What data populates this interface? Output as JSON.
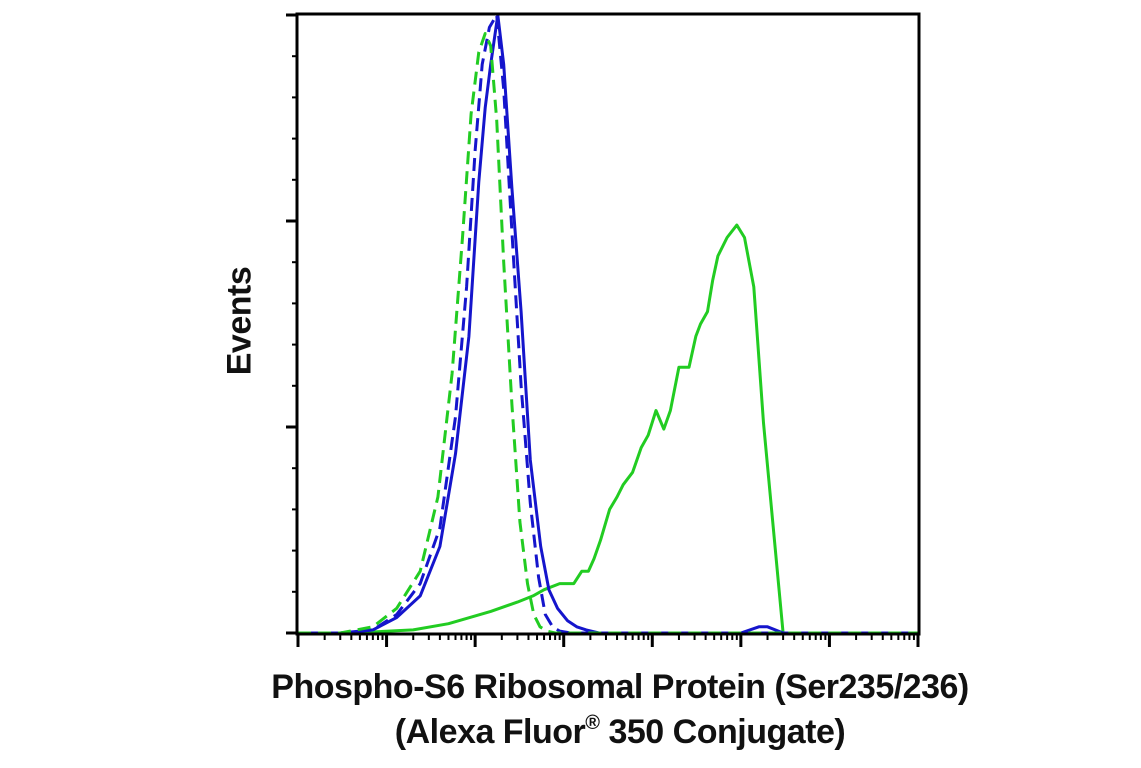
{
  "chart_data": {
    "type": "line",
    "xlabel_line1": "Phospho-S6 Ribosomal Protein (Ser235/236)",
    "xlabel_line2_prefix": "(Alexa Fluor",
    "xlabel_line2_mark": "®",
    "xlabel_line2_suffix": " 350 Conjugate)",
    "ylabel": "Events",
    "x_scale": "log",
    "xlim": [
      10,
      100000000
    ],
    "ylim": [
      0,
      100
    ],
    "grid": false,
    "legend": "none",
    "series": [
      {
        "color": "#22cc22",
        "style": "solid",
        "x": [
          40,
          200,
          500,
          1500,
          3000,
          4500,
          6000,
          9000,
          13000,
          16000,
          19000,
          22000,
          26000,
          33000,
          40000,
          47000,
          60000,
          75000,
          90000,
          110000,
          135000,
          160000,
          200000,
          260000,
          310000,
          350000,
          420000,
          480000,
          550000,
          700000,
          900000,
          1100000,
          1400000,
          1800000,
          3000000,
          100000000
        ],
        "y": [
          0,
          0.5,
          1.5,
          3.5,
          5,
          6,
          7,
          8,
          8,
          10,
          10,
          12,
          15,
          20,
          22,
          24,
          26,
          30,
          32,
          36,
          33,
          36,
          43,
          43,
          48,
          50,
          52,
          57,
          61,
          64,
          66,
          64,
          56,
          34,
          0,
          0
        ]
      },
      {
        "color": "#1515cc",
        "style": "solid",
        "x": [
          10,
          30,
          70,
          130,
          240,
          400,
          600,
          850,
          1100,
          1300,
          1500,
          1800,
          2100,
          2600,
          3300,
          4200,
          5500,
          6800,
          8500,
          11000,
          14000,
          18000,
          25000,
          40000,
          100000,
          500000,
          1000000,
          1600000,
          2000000,
          3000000,
          100000000
        ],
        "y": [
          0,
          0,
          0.5,
          2.5,
          6,
          14,
          29,
          48,
          73,
          85,
          92,
          100,
          92,
          72,
          52,
          28,
          14,
          7,
          4,
          2,
          1,
          0.5,
          0,
          0,
          0,
          0,
          0,
          1,
          1,
          0,
          0
        ]
      },
      {
        "color": "#1515cc",
        "style": "dashed",
        "x": [
          10,
          30,
          70,
          130,
          240,
          400,
          600,
          800,
          1000,
          1200,
          1450,
          1750,
          2100,
          2600,
          3300,
          4200,
          5200,
          6200,
          7500,
          9000,
          12000,
          20000,
          100000000
        ],
        "y": [
          0,
          0,
          0.5,
          3,
          8,
          17,
          35,
          56,
          78,
          92,
          98,
          100,
          88,
          65,
          40,
          21,
          9,
          3,
          1,
          0.3,
          0,
          0,
          0
        ]
      },
      {
        "color": "#22cc22",
        "style": "dashed",
        "x": [
          10,
          30,
          70,
          130,
          240,
          380,
          550,
          720,
          900,
          1100,
          1300,
          1500,
          1750,
          2100,
          2600,
          3200,
          3900,
          4600,
          5400,
          6500,
          8000,
          12000,
          100000000
        ],
        "y": [
          0,
          0,
          1,
          4,
          10,
          22,
          42,
          64,
          84,
          94,
          97,
          95,
          83,
          60,
          37,
          18,
          8,
          3,
          1,
          0.3,
          0,
          0,
          0
        ]
      }
    ]
  }
}
